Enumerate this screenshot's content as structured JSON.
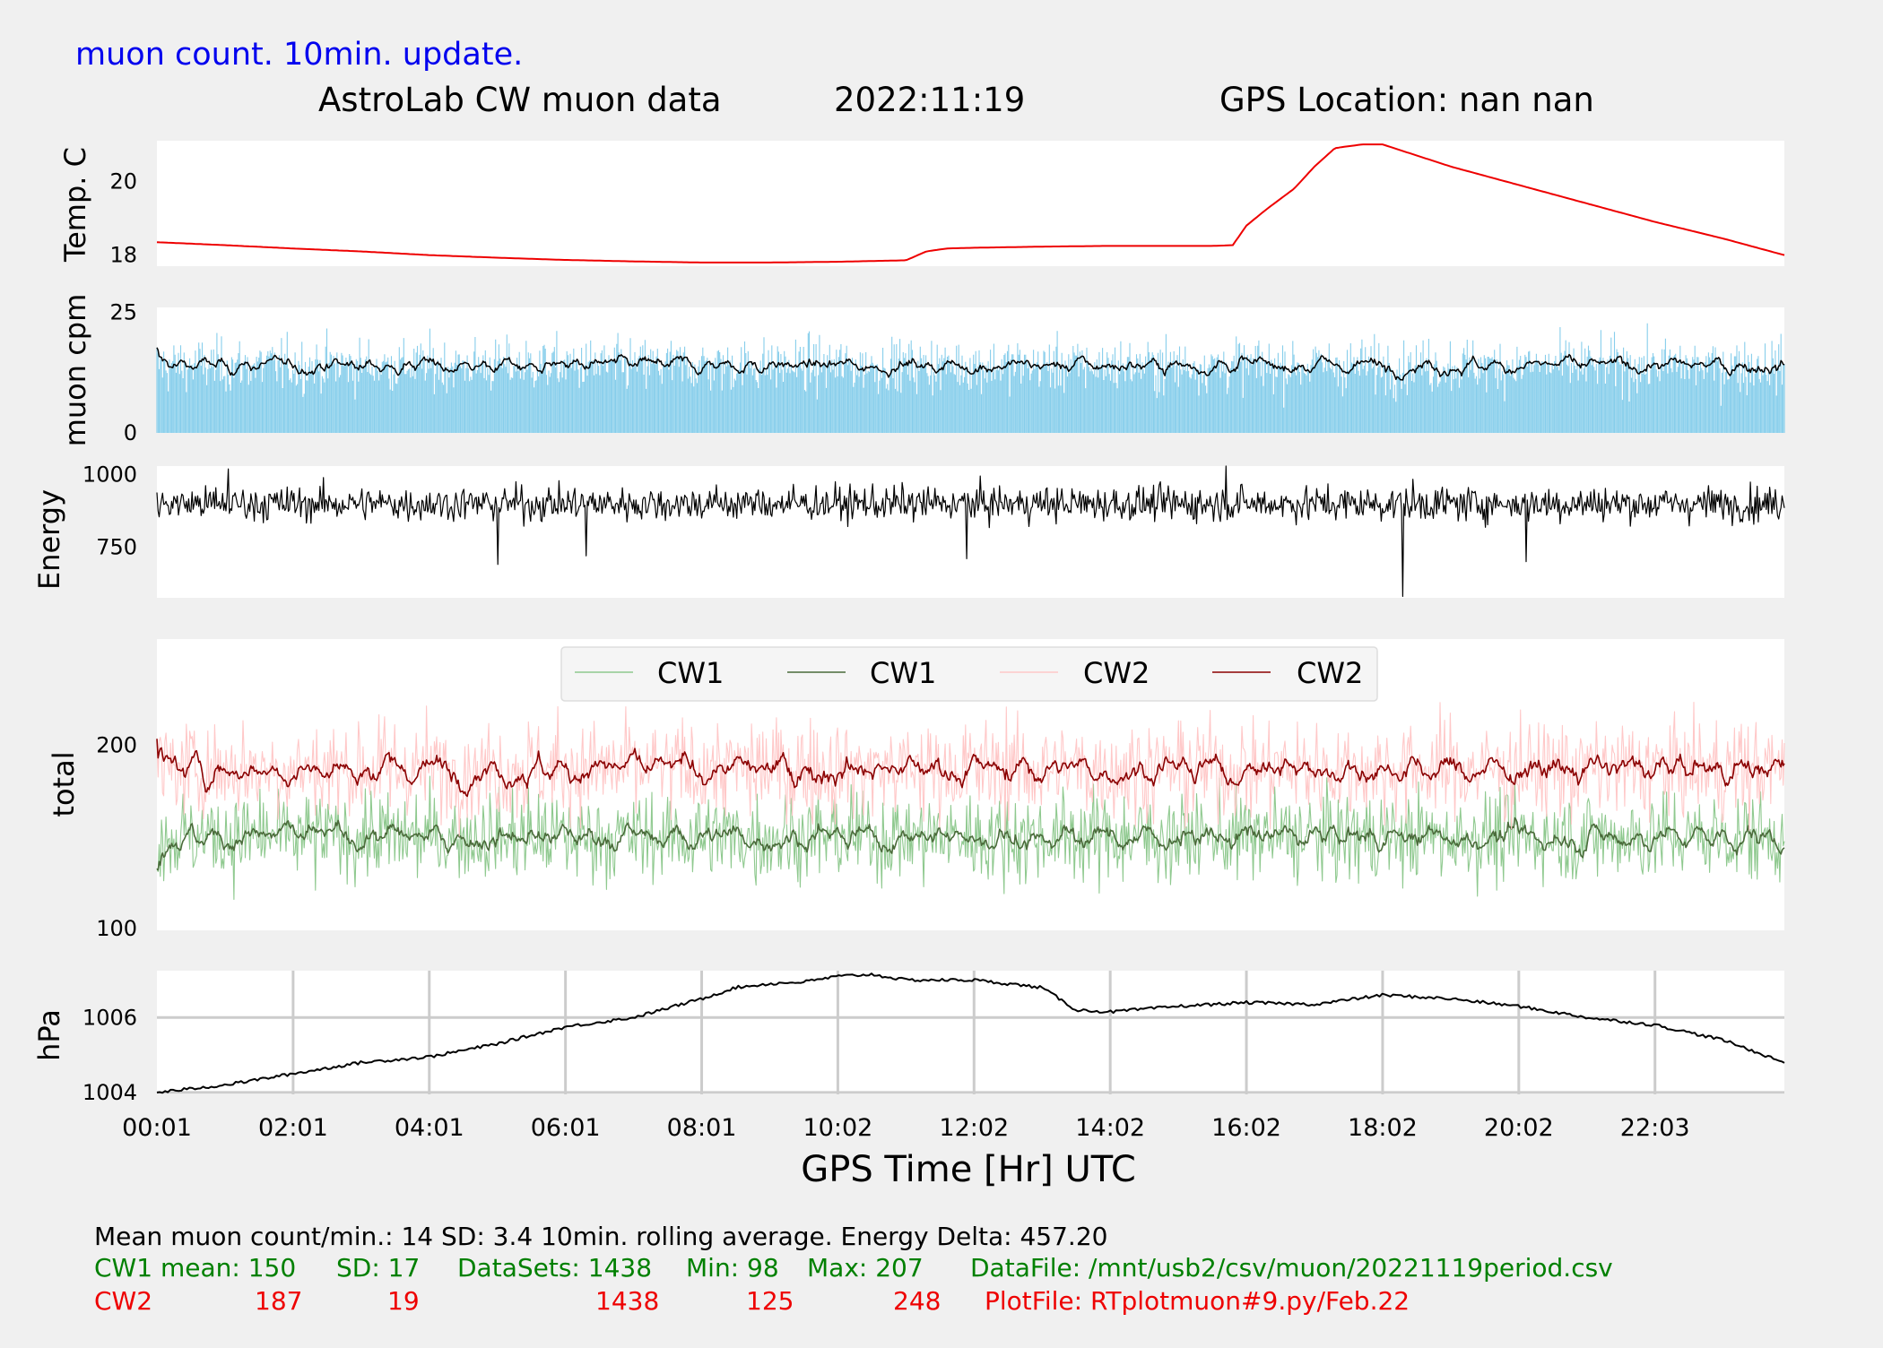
{
  "header": {
    "update_note": "muon count.  10min. update.",
    "title": "AstroLab CW muon data",
    "date": "2022:11:19",
    "gps_location": "GPS Location: nan   nan"
  },
  "colors": {
    "update_note": "#0000ee",
    "temp": "#ee0000",
    "muon_bars": "#87ceeb",
    "black": "#000000",
    "cw1_raw": "#8fc98f",
    "cw1_avg": "#4a6b3a",
    "cw2_raw": "#ffc8c8",
    "cw2_avg": "#8b0000",
    "grid": "#cccccc",
    "green_text": "#008000",
    "red_text": "#ee0000"
  },
  "chart_data": {
    "type": "line",
    "x_tick_labels": [
      "00:01",
      "02:01",
      "04:01",
      "06:01",
      "08:01",
      "10:02",
      "12:02",
      "14:02",
      "16:02",
      "18:02",
      "20:02",
      "22:03"
    ],
    "x_tick_hours": [
      0,
      2,
      4,
      6,
      8,
      10,
      12,
      14,
      16,
      18,
      20,
      22
    ],
    "xlim": [
      0,
      23.9
    ],
    "xlabel": "GPS Time  [Hr] UTC",
    "panels": [
      {
        "id": "temp",
        "type": "line",
        "ylabel": "Temp. C",
        "ylim": [
          17.7,
          21.1
        ],
        "yticks": [
          18,
          20
        ],
        "grid": false,
        "series": [
          {
            "color": "temp",
            "x": [
              0,
              1,
              2,
              3,
              4,
              5,
              6,
              7,
              8,
              9,
              10,
              11,
              11.3,
              11.6,
              12,
              13,
              14,
              15,
              15.5,
              15.8,
              16,
              16.3,
              16.7,
              17,
              17.3,
              17.7,
              18,
              18.5,
              19,
              20,
              21,
              22,
              23,
              23.9
            ],
            "y": [
              18.35,
              18.27,
              18.18,
              18.1,
              18.0,
              17.93,
              17.87,
              17.83,
              17.8,
              17.8,
              17.82,
              17.86,
              18.1,
              18.18,
              18.2,
              18.23,
              18.25,
              18.25,
              18.25,
              18.27,
              18.8,
              19.25,
              19.8,
              20.4,
              20.9,
              21.0,
              21.0,
              20.7,
              20.4,
              19.9,
              19.4,
              18.9,
              18.45,
              18.0
            ]
          }
        ]
      },
      {
        "id": "muon",
        "type": "bar+line",
        "ylabel": "muon cpm",
        "ylim": [
          0,
          26
        ],
        "yticks": [
          0,
          25
        ],
        "grid": false,
        "bars": {
          "color": "muon_bars",
          "mean": 14,
          "sd": 3.4,
          "max": 25
        },
        "avg_series": {
          "color": "black",
          "mean": 14
        }
      },
      {
        "id": "energy",
        "type": "line",
        "ylabel": "Energy",
        "ylim": [
          575,
          1030
        ],
        "yticks": [
          750,
          1000
        ],
        "grid": false,
        "series": [
          {
            "color": "black",
            "mean": 900,
            "spikes": [
              [
                18.3,
                580
              ],
              [
                5.0,
                690
              ],
              [
                11.9,
                710
              ],
              [
                20.1,
                700
              ],
              [
                6.3,
                720
              ],
              [
                1.05,
                1020
              ],
              [
                15.7,
                1030
              ]
            ]
          }
        ]
      },
      {
        "id": "total",
        "type": "line",
        "ylabel": "total",
        "ylim": [
          99,
          258
        ],
        "yticks": [
          100,
          200
        ],
        "grid": false,
        "legend": {
          "placement": "top-center",
          "entries": [
            {
              "label": "CW1",
              "color": "cw1_raw"
            },
            {
              "label": "CW1",
              "color": "cw1_avg"
            },
            {
              "label": "CW2",
              "color": "cw2_raw"
            },
            {
              "label": "CW2",
              "color": "cw2_avg"
            }
          ]
        },
        "series": [
          {
            "name": "CW1",
            "kind": "raw",
            "color": "cw1_raw",
            "mean": 150,
            "sd": 17,
            "min": 98,
            "max": 207
          },
          {
            "name": "CW1",
            "kind": "rolling",
            "color": "cw1_avg",
            "mean": 150
          },
          {
            "name": "CW2",
            "kind": "raw",
            "color": "cw2_raw",
            "mean": 187,
            "sd": 19,
            "min": 125,
            "max": 248
          },
          {
            "name": "CW2",
            "kind": "rolling",
            "color": "cw2_avg",
            "mean": 187
          }
        ]
      },
      {
        "id": "hpa",
        "type": "line",
        "ylabel": "hPa",
        "ylim": [
          1003.95,
          1007.25
        ],
        "yticks": [
          1004,
          1006
        ],
        "grid": true,
        "series": [
          {
            "color": "black",
            "x": [
              0,
              1,
              2,
              3,
              4,
              5,
              6,
              7,
              8,
              8.5,
              9,
              9.5,
              10,
              10.5,
              11,
              12,
              13,
              13.5,
              14,
              15,
              16,
              17,
              18,
              19,
              20,
              21,
              22,
              23,
              23.6,
              23.9
            ],
            "y": [
              1004.0,
              1004.2,
              1004.5,
              1004.8,
              1004.95,
              1005.3,
              1005.75,
              1006.0,
              1006.5,
              1006.8,
              1006.9,
              1006.95,
              1007.1,
              1007.15,
              1007.0,
              1007.0,
              1006.8,
              1006.2,
              1006.15,
              1006.3,
              1006.4,
              1006.35,
              1006.6,
              1006.5,
              1006.3,
              1006.0,
              1005.8,
              1005.4,
              1005.0,
              1004.8
            ]
          }
        ]
      }
    ]
  },
  "footer": {
    "summary": "Mean muon count/min.: 14  SD: 3.4   10min. rolling average.    Energy Delta:  457.20",
    "cw1": {
      "label": "CW1 mean: 150",
      "sd": "SD: 17",
      "datasets": "DataSets: 1438",
      "min": "Min: 98",
      "max": "Max: 207",
      "file": "DataFile: /mnt/usb2/csv/muon/20221119period.csv"
    },
    "cw2": {
      "label": "CW2",
      "mean": "187",
      "sd": "19",
      "datasets": "1438",
      "min": "125",
      "max": "248",
      "file": "PlotFile: RTplotmuon#9.py/Feb.22"
    }
  }
}
